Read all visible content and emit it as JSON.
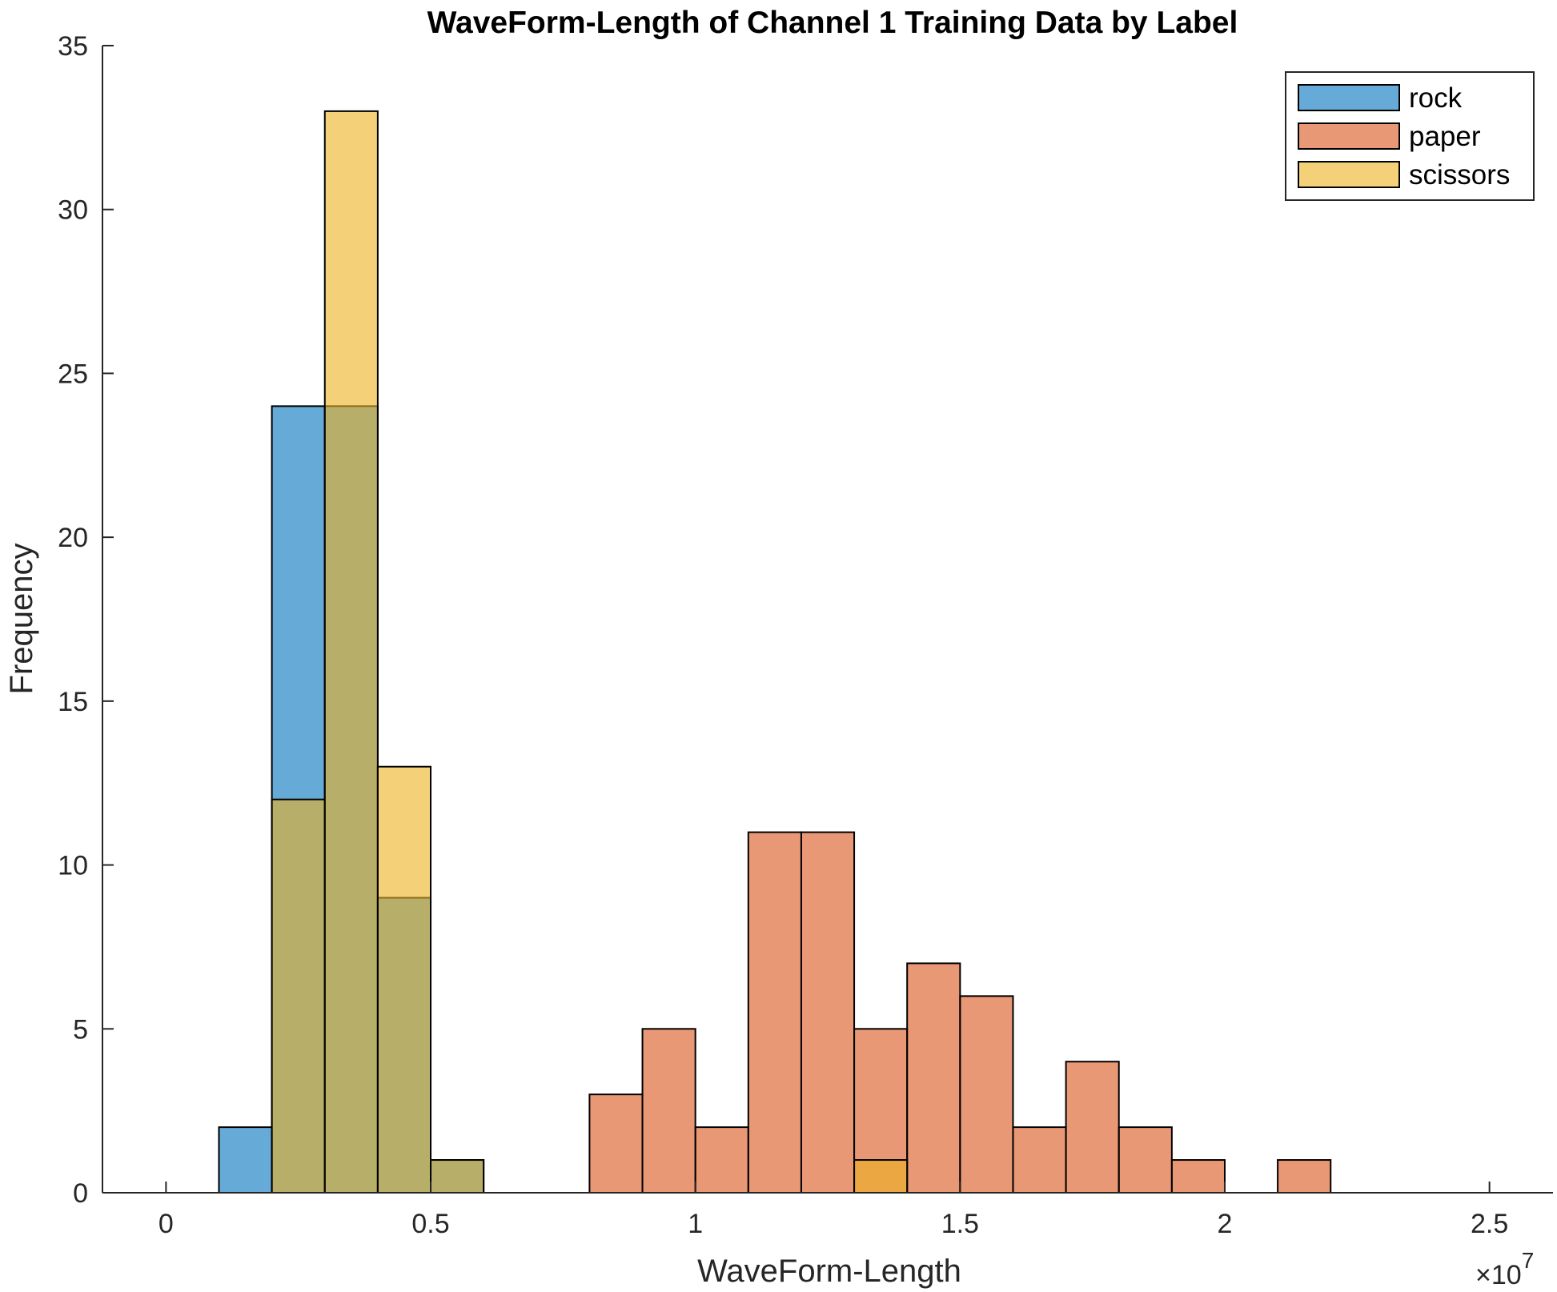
{
  "chart_data": {
    "type": "bar",
    "subtype": "overlapping-histogram",
    "title": "WaveForm-Length of Channel 1 Training Data by Label",
    "xlabel": "WaveForm-Length",
    "ylabel": "Frequency",
    "x_exponent_label": "×10",
    "x_exponent_power": "7",
    "xlim": [
      -0.12,
      2.62
    ],
    "ylim": [
      0,
      35
    ],
    "x_scale_factor": 10000000,
    "x_ticks": [
      0,
      0.5,
      1,
      1.5,
      2,
      2.5
    ],
    "x_tick_labels": [
      "0",
      "0.5",
      "1",
      "1.5",
      "2",
      "2.5"
    ],
    "y_ticks": [
      0,
      5,
      10,
      15,
      20,
      25,
      30,
      35
    ],
    "y_tick_labels": [
      "0",
      "5",
      "10",
      "15",
      "20",
      "25",
      "30",
      "35"
    ],
    "bin_width": 0.1,
    "grid": false,
    "legend_position": "top-right",
    "face_alpha": 0.6,
    "series": [
      {
        "name": "rock",
        "color": "#0072BD",
        "bin_edges_start": [
          0.1,
          0.2,
          0.3,
          0.4,
          0.5
        ],
        "counts": [
          2,
          24,
          24,
          9,
          1
        ]
      },
      {
        "name": "paper",
        "color": "#D95319",
        "bin_edges_start": [
          0.8,
          0.9,
          1.0,
          1.1,
          1.2,
          1.3,
          1.4,
          1.5,
          1.6,
          1.7,
          1.8,
          1.9,
          2.0,
          2.1
        ],
        "counts": [
          3,
          5,
          2,
          11,
          11,
          5,
          7,
          6,
          2,
          4,
          2,
          1,
          0,
          1
        ]
      },
      {
        "name": "scissors",
        "color": "#EDB120",
        "bin_edges_start": [
          0.2,
          0.3,
          0.4,
          0.5,
          1.3
        ],
        "counts": [
          12,
          33,
          13,
          1,
          1
        ]
      }
    ]
  }
}
